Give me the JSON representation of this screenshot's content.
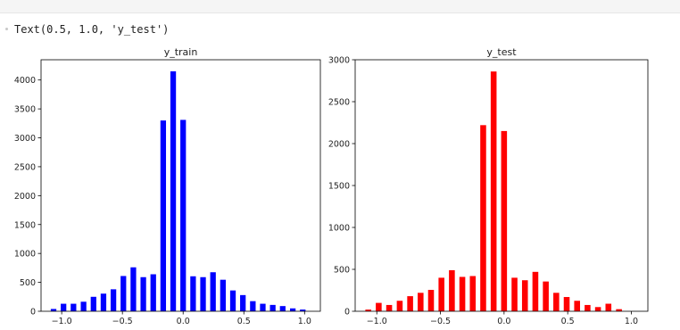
{
  "notebook": {
    "output_text": "Text(0.5, 1.0, 'y_test')"
  },
  "chart_data": [
    {
      "type": "bar",
      "title": "y_train",
      "color": "#0000ff",
      "xlabel": "",
      "ylabel": "",
      "xlim": [
        -1.17,
        1.13
      ],
      "ylim": [
        0,
        4350
      ],
      "xticks": [
        -1.0,
        -0.5,
        0.0,
        0.5,
        1.0
      ],
      "xtick_labels": [
        "−1.0",
        "−0.5",
        "0.0",
        "0.5",
        "1.0"
      ],
      "yticks": [
        0,
        500,
        1000,
        1500,
        2000,
        2500,
        3000,
        3500,
        4000
      ],
      "bar_width": 0.046,
      "x": [
        -1.067,
        -0.985,
        -0.903,
        -0.82,
        -0.738,
        -0.656,
        -0.574,
        -0.492,
        -0.41,
        -0.328,
        -0.246,
        -0.164,
        -0.082,
        0.0,
        0.082,
        0.164,
        0.246,
        0.328,
        0.41,
        0.492,
        0.574,
        0.656,
        0.738,
        0.82,
        0.903,
        0.985,
        1.067
      ],
      "values": [
        40,
        130,
        130,
        165,
        250,
        305,
        380,
        610,
        760,
        590,
        640,
        3300,
        4150,
        3310,
        605,
        590,
        675,
        545,
        360,
        280,
        175,
        130,
        110,
        90,
        50,
        30,
        0
      ]
    },
    {
      "type": "bar",
      "title": "y_test",
      "color": "#ff0000",
      "xlabel": "",
      "ylabel": "",
      "xlim": [
        -1.17,
        1.13
      ],
      "ylim": [
        0,
        3000
      ],
      "xticks": [
        -1.0,
        -0.5,
        0.0,
        0.5,
        1.0
      ],
      "xtick_labels": [
        "−1.0",
        "−0.5",
        "0.0",
        "0.5",
        "1.0"
      ],
      "yticks": [
        0,
        500,
        1000,
        1500,
        2000,
        2500,
        3000
      ],
      "bar_width": 0.046,
      "x": [
        -1.067,
        -0.985,
        -0.903,
        -0.82,
        -0.738,
        -0.656,
        -0.574,
        -0.492,
        -0.41,
        -0.328,
        -0.246,
        -0.164,
        -0.082,
        0.0,
        0.082,
        0.164,
        0.246,
        0.328,
        0.41,
        0.492,
        0.574,
        0.656,
        0.738,
        0.82,
        0.903,
        0.985,
        1.067
      ],
      "values": [
        20,
        100,
        75,
        125,
        180,
        220,
        255,
        400,
        490,
        410,
        420,
        2220,
        2860,
        2150,
        400,
        370,
        470,
        355,
        220,
        170,
        125,
        75,
        50,
        90,
        25,
        0,
        0
      ]
    }
  ]
}
